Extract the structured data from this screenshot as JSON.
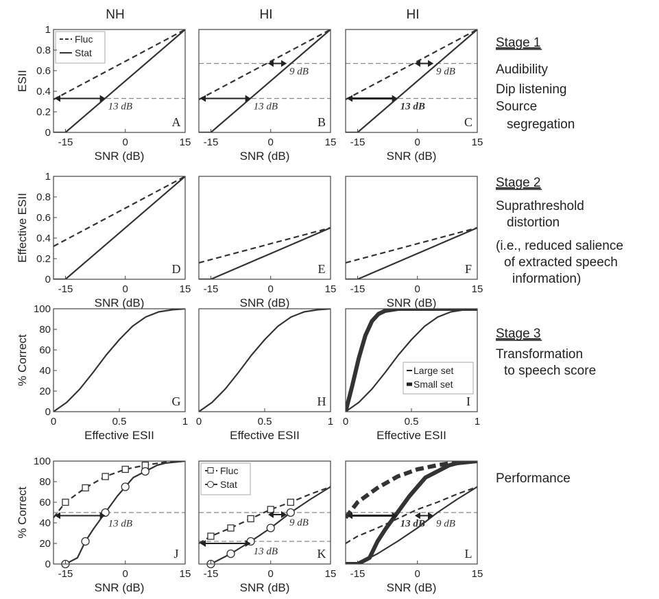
{
  "column_headers": [
    "NH",
    "HI",
    "HI"
  ],
  "right_notes": [
    {
      "lines": [
        "Stage 1"
      ],
      "stage": true
    },
    {
      "lines": [
        "Audibility"
      ]
    },
    {
      "lines": [
        "Dip listening"
      ]
    },
    {
      "lines": [
        "Source",
        "segregation"
      ]
    },
    {
      "lines": [
        "Stage 2"
      ],
      "stage": true
    },
    {
      "lines": [
        "Suprathreshold",
        "distortion"
      ]
    },
    {
      "lines": [
        "(i.e., reduced salience",
        "of extracted speech",
        "information)"
      ]
    },
    {
      "lines": [
        "Stage 3"
      ],
      "stage": true
    },
    {
      "lines": [
        "Transformation",
        "to speech score"
      ]
    },
    {
      "lines": [
        "Performance"
      ]
    }
  ],
  "chart_data": [
    {
      "panel": "A",
      "type": "line",
      "ylabel": "ESII",
      "xlabel": "SNR (dB)",
      "xlim": [
        -18,
        15
      ],
      "ylim": [
        0,
        1
      ],
      "xticks": [
        -15,
        0,
        15
      ],
      "yticks": [
        0,
        0.2,
        0.4,
        0.6,
        0.8,
        1
      ],
      "series": [
        {
          "name": "Fluc",
          "style": "dashed",
          "x": [
            -18,
            15
          ],
          "y": [
            0.32,
            1
          ]
        },
        {
          "name": "Stat",
          "style": "solid",
          "x": [
            -18,
            -15,
            15
          ],
          "y": [
            0,
            0,
            1
          ]
        }
      ],
      "hlines": [
        0.33
      ],
      "annotations": [
        {
          "text": "13 dB",
          "x1": -18,
          "x2": -5,
          "y": 0.33
        }
      ],
      "legend": {
        "entries": [
          "Fluc",
          "Stat"
        ],
        "position": "top-left"
      }
    },
    {
      "panel": "B",
      "type": "line",
      "xlabel": "SNR (dB)",
      "xlim": [
        -18,
        15
      ],
      "ylim": [
        0,
        1
      ],
      "xticks": [
        -15,
        0,
        15
      ],
      "series": [
        {
          "style": "dashed",
          "x": [
            -18,
            15
          ],
          "y": [
            0.32,
            1
          ]
        },
        {
          "style": "solid",
          "x": [
            -18,
            -15,
            15
          ],
          "y": [
            0,
            0,
            1
          ]
        }
      ],
      "hlines": [
        0.33,
        0.67
      ],
      "annotations": [
        {
          "text": "13 dB",
          "x1": -18,
          "x2": -5,
          "y": 0.33
        },
        {
          "text": "9 dB",
          "x1": -1,
          "x2": 4,
          "y": 0.67
        }
      ]
    },
    {
      "panel": "C",
      "type": "line",
      "xlabel": "SNR (dB)",
      "xlim": [
        -18,
        15
      ],
      "ylim": [
        0,
        1
      ],
      "xticks": [
        -15,
        0,
        15
      ],
      "series": [
        {
          "style": "dashed",
          "x": [
            -18,
            15
          ],
          "y": [
            0.32,
            1
          ]
        },
        {
          "style": "solid",
          "x": [
            -18,
            -15,
            15
          ],
          "y": [
            0,
            0,
            1
          ]
        }
      ],
      "hlines": [
        0.33,
        0.67
      ],
      "annotations": [
        {
          "text": "13 dB",
          "x1": -18,
          "x2": -5,
          "y": 0.33,
          "bold": true
        },
        {
          "text": "9 dB",
          "x1": -1,
          "x2": 4,
          "y": 0.67
        }
      ]
    },
    {
      "panel": "D",
      "type": "line",
      "ylabel": "Effective ESII",
      "xlabel": "SNR (dB)",
      "xlim": [
        -18,
        15
      ],
      "ylim": [
        0,
        1
      ],
      "xticks": [
        -15,
        0,
        15
      ],
      "yticks": [
        0,
        0.2,
        0.4,
        0.6,
        0.8,
        1
      ],
      "series": [
        {
          "style": "dashed",
          "x": [
            -18,
            15
          ],
          "y": [
            0.32,
            1
          ]
        },
        {
          "style": "solid",
          "x": [
            -18,
            -15,
            15
          ],
          "y": [
            0,
            0,
            1
          ]
        }
      ]
    },
    {
      "panel": "E",
      "type": "line",
      "xlabel": "SNR (dB)",
      "xlim": [
        -18,
        15
      ],
      "ylim": [
        0,
        1
      ],
      "xticks": [
        -15,
        0,
        15
      ],
      "series": [
        {
          "style": "dashed",
          "x": [
            -18,
            15
          ],
          "y": [
            0.16,
            0.5
          ]
        },
        {
          "style": "solid",
          "x": [
            -18,
            -15,
            15
          ],
          "y": [
            0,
            0,
            0.5
          ]
        }
      ]
    },
    {
      "panel": "F",
      "type": "line",
      "xlabel": "SNR (dB)",
      "xlim": [
        -18,
        15
      ],
      "ylim": [
        0,
        1
      ],
      "xticks": [
        -15,
        0,
        15
      ],
      "series": [
        {
          "style": "dashed",
          "x": [
            -18,
            15
          ],
          "y": [
            0.16,
            0.5
          ]
        },
        {
          "style": "solid",
          "x": [
            -18,
            -15,
            15
          ],
          "y": [
            0,
            0,
            0.5
          ]
        }
      ]
    },
    {
      "panel": "G",
      "type": "line",
      "ylabel": "% Correct",
      "xlabel": "Effective ESII",
      "xlim": [
        0,
        1
      ],
      "ylim": [
        0,
        100
      ],
      "xticks": [
        0,
        0.5,
        1
      ],
      "yticks": [
        0,
        20,
        40,
        60,
        80,
        100
      ],
      "series": [
        {
          "style": "solid",
          "x": [
            0,
            0.1,
            0.2,
            0.3,
            0.4,
            0.5,
            0.6,
            0.7,
            0.8,
            0.9,
            1
          ],
          "y": [
            0,
            9,
            22,
            38,
            55,
            70,
            83,
            92,
            97,
            99,
            100
          ]
        }
      ]
    },
    {
      "panel": "H",
      "type": "line",
      "xlabel": "Effective ESII",
      "xlim": [
        0,
        1
      ],
      "ylim": [
        0,
        100
      ],
      "xticks": [
        0,
        0.5,
        1
      ],
      "series": [
        {
          "style": "solid",
          "x": [
            0,
            0.1,
            0.2,
            0.3,
            0.4,
            0.5,
            0.6,
            0.7,
            0.8,
            0.9,
            1
          ],
          "y": [
            0,
            9,
            22,
            38,
            55,
            70,
            83,
            92,
            97,
            99,
            100
          ]
        }
      ]
    },
    {
      "panel": "I",
      "type": "line",
      "xlabel": "Effective ESII",
      "xlim": [
        0,
        1
      ],
      "ylim": [
        0,
        100
      ],
      "xticks": [
        0,
        0.5,
        1
      ],
      "series": [
        {
          "name": "Large set",
          "style": "solid",
          "x": [
            0,
            0.1,
            0.2,
            0.3,
            0.4,
            0.5,
            0.6,
            0.7,
            0.8,
            0.9,
            1
          ],
          "y": [
            0,
            9,
            22,
            38,
            55,
            70,
            83,
            92,
            97,
            99,
            100
          ]
        },
        {
          "name": "Small set",
          "style": "thick",
          "x": [
            0,
            0.05,
            0.1,
            0.15,
            0.2,
            0.25,
            0.3,
            0.4,
            0.5,
            0.6,
            1
          ],
          "y": [
            0,
            25,
            52,
            74,
            88,
            95,
            98,
            100,
            100,
            100,
            100
          ]
        }
      ],
      "legend": {
        "entries": [
          "Large set",
          "Small set"
        ],
        "position": "bottom-right"
      }
    },
    {
      "panel": "J",
      "type": "line",
      "ylabel": "% Correct",
      "xlabel": "SNR (dB)",
      "xlim": [
        -18,
        15
      ],
      "ylim": [
        0,
        100
      ],
      "xticks": [
        -15,
        0,
        15
      ],
      "yticks": [
        0,
        20,
        40,
        60,
        80,
        100
      ],
      "series": [
        {
          "style": "dashed",
          "markers": "square",
          "x": [
            -18,
            -15,
            -10,
            -5,
            0,
            5,
            10,
            15
          ],
          "y": [
            45,
            60,
            74,
            85,
            92,
            96,
            99,
            100
          ],
          "marker_x": [
            -15,
            -10,
            -5,
            0,
            5
          ]
        },
        {
          "style": "solid",
          "markers": "circle",
          "x": [
            -15,
            -12,
            -10,
            -8,
            -5,
            -2,
            0,
            2,
            5,
            8,
            10,
            15
          ],
          "y": [
            0,
            6,
            22,
            34,
            50,
            66,
            75,
            84,
            90,
            96,
            98,
            100
          ],
          "marker_x": [
            -15,
            -10,
            -5,
            0,
            5
          ]
        }
      ],
      "hlines": [
        50
      ],
      "annotations": [
        {
          "text": "13 dB",
          "x1": -18,
          "x2": -5,
          "y": 47
        }
      ]
    },
    {
      "panel": "K",
      "type": "line",
      "xlabel": "SNR (dB)",
      "xlim": [
        -18,
        15
      ],
      "ylim": [
        0,
        100
      ],
      "xticks": [
        -15,
        0,
        15
      ],
      "series": [
        {
          "name": "Fluc",
          "style": "dashed",
          "markers": "square",
          "x": [
            -18,
            -15,
            -10,
            -5,
            0,
            5,
            10,
            15
          ],
          "y": [
            20,
            27,
            35,
            44,
            53,
            60,
            68,
            75
          ],
          "marker_x": [
            -15,
            -10,
            -5,
            0,
            5
          ]
        },
        {
          "name": "Stat",
          "style": "solid",
          "markers": "circle",
          "x": [
            -15,
            -10,
            -5,
            0,
            5,
            10,
            15
          ],
          "y": [
            0,
            10,
            22,
            35,
            50,
            63,
            75
          ],
          "marker_x": [
            -15,
            -10,
            -5,
            0,
            5
          ]
        }
      ],
      "hlines": [
        22,
        50
      ],
      "annotations": [
        {
          "text": "13 dB",
          "x1": -18,
          "x2": -5,
          "y": 20
        },
        {
          "text": "9 dB",
          "x1": -1,
          "x2": 4,
          "y": 48
        }
      ],
      "legend": {
        "entries": [
          "Fluc",
          "Stat"
        ],
        "position": "top-left"
      }
    },
    {
      "panel": "L",
      "type": "line",
      "xlabel": "SNR (dB)",
      "xlim": [
        -18,
        15
      ],
      "ylim": [
        0,
        100
      ],
      "xticks": [
        -15,
        0,
        15
      ],
      "series": [
        {
          "style": "thick-dashed",
          "x": [
            -18,
            -15,
            -10,
            -5,
            0,
            5,
            10,
            15
          ],
          "y": [
            45,
            60,
            74,
            85,
            92,
            96,
            99,
            100
          ]
        },
        {
          "style": "thick",
          "x": [
            -18,
            -15,
            -12,
            -10,
            -8,
            -5,
            -2,
            0,
            2,
            5,
            8,
            10,
            15
          ],
          "y": [
            0,
            0,
            6,
            22,
            34,
            50,
            66,
            75,
            84,
            90,
            96,
            98,
            100
          ]
        },
        {
          "style": "dashed",
          "x": [
            -18,
            -15,
            -10,
            -5,
            0,
            5,
            10,
            15
          ],
          "y": [
            20,
            27,
            35,
            44,
            53,
            60,
            68,
            75
          ]
        },
        {
          "style": "solid",
          "x": [
            -18,
            -15,
            -10,
            -5,
            0,
            5,
            10,
            15
          ],
          "y": [
            0,
            0,
            10,
            22,
            35,
            50,
            63,
            75
          ]
        }
      ],
      "hlines": [
        50
      ],
      "annotations": [
        {
          "text": "13 dB",
          "x1": -18,
          "x2": -5,
          "y": 47,
          "bold": true
        },
        {
          "text": "9 dB",
          "x1": -1,
          "x2": 4,
          "y": 47
        }
      ]
    }
  ]
}
